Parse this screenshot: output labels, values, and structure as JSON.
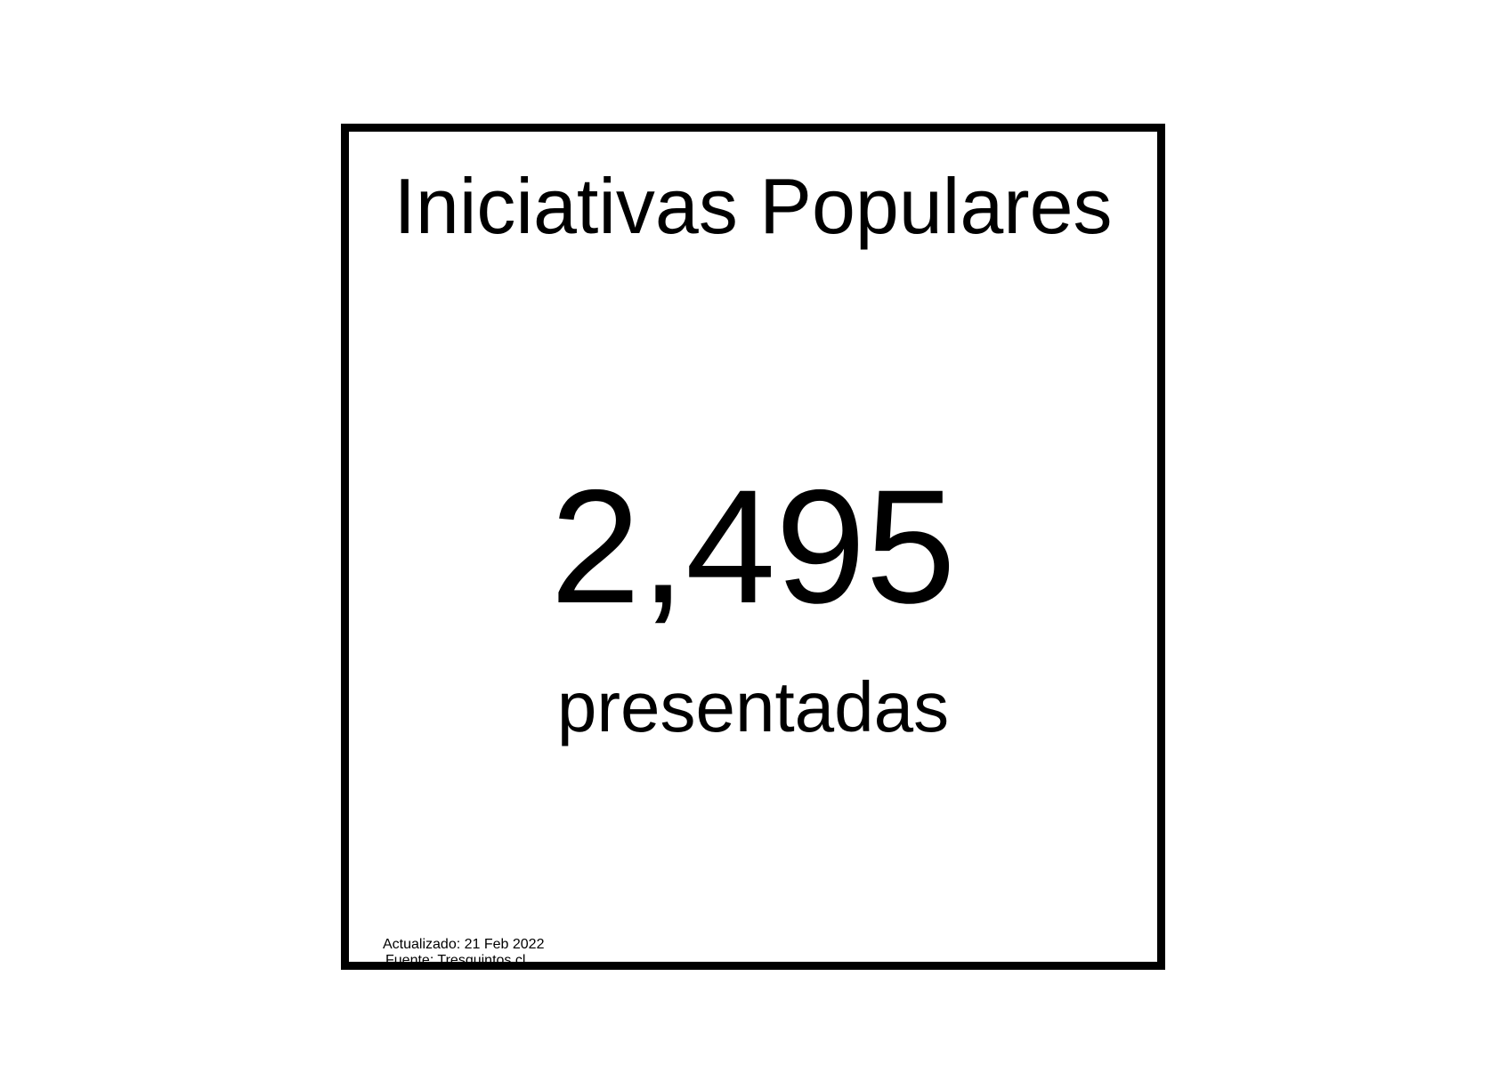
{
  "card": {
    "title": "Iniciativas Populares",
    "value": "2,495",
    "subtitle": "presentadas",
    "updated": "Actualizado: 21 Feb 2022",
    "source": "Fuente: Tresquintos.cl"
  },
  "colors": {
    "border": "#000000",
    "text": "#000000",
    "background": "#ffffff"
  }
}
